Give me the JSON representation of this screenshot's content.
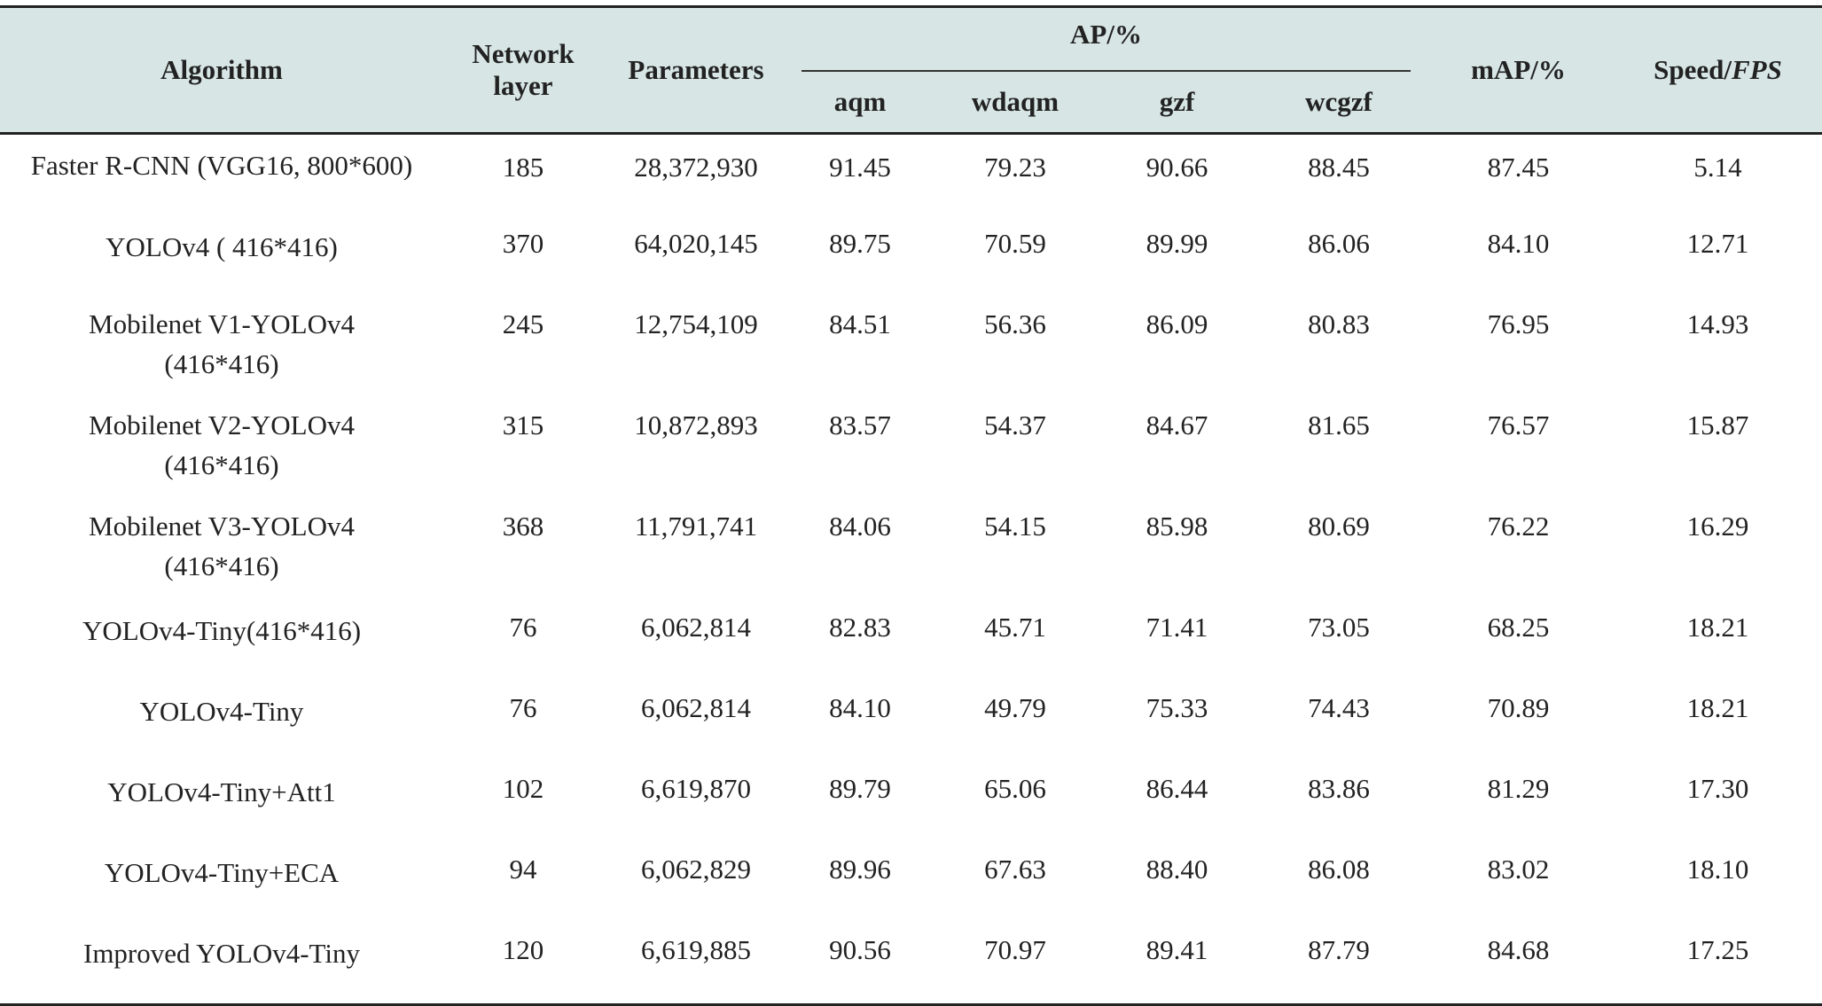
{
  "table": {
    "headers": {
      "algorithm": "Algorithm",
      "network_layer_line1": "Network",
      "network_layer_line2": "layer",
      "parameters": "Parameters",
      "ap_group": "AP/%",
      "ap_sub": [
        "aqm",
        "wdaqm",
        "gzf",
        "wcgzf"
      ],
      "map": "mAP/%",
      "speed_prefix": "Speed/",
      "speed_unit": "FPS"
    },
    "rows": [
      {
        "algorithm_line1": "Faster R-CNN (VGG16, 800*600)",
        "algorithm_line2": "",
        "network_layer": "185",
        "parameters": "28,372,930",
        "aqm": "91.45",
        "wdaqm": "79.23",
        "gzf": "90.66",
        "wcgzf": "88.45",
        "map": "87.45",
        "speed": "5.14"
      },
      {
        "algorithm_line1": "YOLOv4 ( 416*416)",
        "algorithm_line2": "",
        "network_layer": "370",
        "parameters": "64,020,145",
        "aqm": "89.75",
        "wdaqm": "70.59",
        "gzf": "89.99",
        "wcgzf": "86.06",
        "map": "84.10",
        "speed": "12.71"
      },
      {
        "algorithm_line1": "Mobilenet V1-YOLOv4",
        "algorithm_line2": "(416*416)",
        "network_layer": "245",
        "parameters": "12,754,109",
        "aqm": "84.51",
        "wdaqm": "56.36",
        "gzf": "86.09",
        "wcgzf": "80.83",
        "map": "76.95",
        "speed": "14.93"
      },
      {
        "algorithm_line1": "Mobilenet V2-YOLOv4",
        "algorithm_line2": "(416*416)",
        "network_layer": "315",
        "parameters": "10,872,893",
        "aqm": "83.57",
        "wdaqm": "54.37",
        "gzf": "84.67",
        "wcgzf": "81.65",
        "map": "76.57",
        "speed": "15.87"
      },
      {
        "algorithm_line1": "Mobilenet V3-YOLOv4",
        "algorithm_line2": "(416*416)",
        "network_layer": "368",
        "parameters": "11,791,741",
        "aqm": "84.06",
        "wdaqm": "54.15",
        "gzf": "85.98",
        "wcgzf": "80.69",
        "map": "76.22",
        "speed": "16.29"
      },
      {
        "algorithm_line1": "YOLOv4-Tiny(416*416)",
        "algorithm_line2": "",
        "network_layer": "76",
        "parameters": "6,062,814",
        "aqm": "82.83",
        "wdaqm": "45.71",
        "gzf": "71.41",
        "wcgzf": "73.05",
        "map": "68.25",
        "speed": "18.21"
      },
      {
        "algorithm_line1": "YOLOv4-Tiny",
        "algorithm_line2": "",
        "network_layer": "76",
        "parameters": "6,062,814",
        "aqm": "84.10",
        "wdaqm": "49.79",
        "gzf": "75.33",
        "wcgzf": "74.43",
        "map": "70.89",
        "speed": "18.21"
      },
      {
        "algorithm_line1": "YOLOv4-Tiny+Att1",
        "algorithm_line2": "",
        "network_layer": "102",
        "parameters": "6,619,870",
        "aqm": "89.79",
        "wdaqm": "65.06",
        "gzf": "86.44",
        "wcgzf": "83.86",
        "map": "81.29",
        "speed": "17.30"
      },
      {
        "algorithm_line1": "YOLOv4-Tiny+ECA",
        "algorithm_line2": "",
        "network_layer": "94",
        "parameters": "6,062,829",
        "aqm": "89.96",
        "wdaqm": "67.63",
        "gzf": "88.40",
        "wcgzf": "86.08",
        "map": "83.02",
        "speed": "18.10"
      },
      {
        "algorithm_line1": "Improved YOLOv4-Tiny",
        "algorithm_line2": "",
        "network_layer": "120",
        "parameters": "6,619,885",
        "aqm": "90.56",
        "wdaqm": "70.97",
        "gzf": "89.41",
        "wcgzf": "87.79",
        "map": "84.68",
        "speed": "17.25"
      }
    ]
  },
  "colors": {
    "header_bg": "#d7e6e4",
    "rule": "#222222"
  }
}
